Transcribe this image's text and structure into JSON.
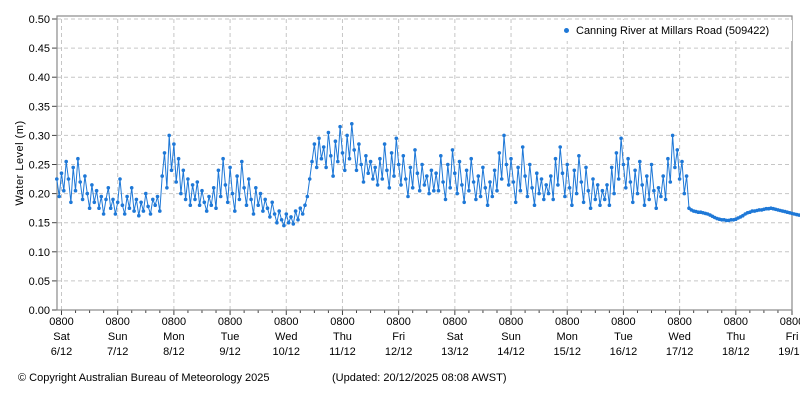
{
  "legend": {
    "label": "Canning River at Millars Road (509422)",
    "marker_color": "#1e78d7"
  },
  "footer": {
    "copyright": "© Copyright Australian Bureau of Meteorology 2025",
    "updated": "(Updated: 20/12/2025 08:08 AWST)"
  },
  "colors": {
    "series": "#1e78d7",
    "grid": "#c6c6c6",
    "frame": "#8a8a8a",
    "tick": "#444444",
    "text": "#000000"
  },
  "chart_data": {
    "type": "scatter",
    "title": "",
    "xlabel": "",
    "ylabel": "Water Level (m)",
    "ylim": [
      0.0,
      0.5
    ],
    "ytick_step": 0.05,
    "ytick_labels": [
      "0.00",
      "0.05",
      "0.10",
      "0.15",
      "0.20",
      "0.25",
      "0.30",
      "0.35",
      "0.40",
      "0.45",
      "0.50"
    ],
    "grid": "dashed",
    "legend_position": "top-right",
    "x_axis": {
      "tick_time_label": "0800",
      "minor_tick_hours": 6,
      "days": [
        {
          "dow": "Sat",
          "date": "6/12"
        },
        {
          "dow": "Sun",
          "date": "7/12"
        },
        {
          "dow": "Mon",
          "date": "8/12"
        },
        {
          "dow": "Tue",
          "date": "9/12"
        },
        {
          "dow": "Wed",
          "date": "10/12"
        },
        {
          "dow": "Thu",
          "date": "11/12"
        },
        {
          "dow": "Fri",
          "date": "12/12"
        },
        {
          "dow": "Sat",
          "date": "13/12"
        },
        {
          "dow": "Sun",
          "date": "14/12"
        },
        {
          "dow": "Mon",
          "date": "15/12"
        },
        {
          "dow": "Tue",
          "date": "16/12"
        },
        {
          "dow": "Wed",
          "date": "17/12"
        },
        {
          "dow": "Thu",
          "date": "18/12"
        },
        {
          "dow": "Fri",
          "date": "19/12"
        }
      ]
    },
    "series": [
      {
        "name": "Canning River at Millars Road (509422)",
        "color": "#1e78d7",
        "units": "m",
        "start": {
          "date": "6/12",
          "hour": 6
        },
        "end": {
          "date": "20/12",
          "hour": 8
        },
        "interval_hours": 1,
        "values": [
          0.225,
          0.195,
          0.235,
          0.205,
          0.255,
          0.225,
          0.185,
          0.245,
          0.205,
          0.26,
          0.22,
          0.19,
          0.23,
          0.2,
          0.175,
          0.215,
          0.185,
          0.205,
          0.175,
          0.195,
          0.165,
          0.19,
          0.21,
          0.175,
          0.19,
          0.165,
          0.185,
          0.225,
          0.18,
          0.165,
          0.195,
          0.175,
          0.21,
          0.17,
          0.19,
          0.162,
          0.185,
          0.17,
          0.2,
          0.178,
          0.165,
          0.19,
          0.18,
          0.195,
          0.17,
          0.23,
          0.27,
          0.21,
          0.3,
          0.24,
          0.285,
          0.22,
          0.26,
          0.2,
          0.24,
          0.19,
          0.225,
          0.18,
          0.215,
          0.19,
          0.22,
          0.18,
          0.205,
          0.185,
          0.17,
          0.195,
          0.18,
          0.21,
          0.175,
          0.24,
          0.195,
          0.26,
          0.215,
          0.185,
          0.245,
          0.2,
          0.17,
          0.23,
          0.19,
          0.255,
          0.21,
          0.18,
          0.225,
          0.19,
          0.165,
          0.21,
          0.18,
          0.2,
          0.17,
          0.19,
          0.175,
          0.16,
          0.185,
          0.165,
          0.15,
          0.17,
          0.155,
          0.145,
          0.165,
          0.15,
          0.16,
          0.148,
          0.17,
          0.155,
          0.175,
          0.165,
          0.18,
          0.195,
          0.225,
          0.255,
          0.285,
          0.245,
          0.295,
          0.26,
          0.28,
          0.245,
          0.305,
          0.265,
          0.23,
          0.29,
          0.255,
          0.315,
          0.27,
          0.24,
          0.3,
          0.26,
          0.32,
          0.275,
          0.24,
          0.285,
          0.25,
          0.22,
          0.265,
          0.235,
          0.255,
          0.225,
          0.245,
          0.215,
          0.26,
          0.225,
          0.285,
          0.24,
          0.21,
          0.27,
          0.23,
          0.295,
          0.25,
          0.215,
          0.265,
          0.225,
          0.195,
          0.245,
          0.21,
          0.275,
          0.235,
          0.205,
          0.25,
          0.215,
          0.23,
          0.2,
          0.24,
          0.205,
          0.235,
          0.205,
          0.265,
          0.22,
          0.19,
          0.25,
          0.21,
          0.275,
          0.235,
          0.2,
          0.255,
          0.215,
          0.185,
          0.24,
          0.205,
          0.26,
          0.22,
          0.19,
          0.23,
          0.195,
          0.245,
          0.21,
          0.18,
          0.22,
          0.195,
          0.24,
          0.205,
          0.27,
          0.225,
          0.3,
          0.25,
          0.215,
          0.26,
          0.22,
          0.185,
          0.245,
          0.205,
          0.28,
          0.23,
          0.195,
          0.25,
          0.21,
          0.18,
          0.235,
          0.2,
          0.225,
          0.19,
          0.215,
          0.2,
          0.23,
          0.19,
          0.26,
          0.215,
          0.28,
          0.235,
          0.195,
          0.25,
          0.21,
          0.18,
          0.24,
          0.2,
          0.265,
          0.22,
          0.185,
          0.245,
          0.205,
          0.175,
          0.225,
          0.19,
          0.215,
          0.18,
          0.205,
          0.19,
          0.215,
          0.18,
          0.245,
          0.2,
          0.27,
          0.225,
          0.295,
          0.25,
          0.21,
          0.26,
          0.22,
          0.185,
          0.24,
          0.2,
          0.255,
          0.215,
          0.18,
          0.23,
          0.19,
          0.25,
          0.205,
          0.175,
          0.21,
          0.195,
          0.23,
          0.19,
          0.26,
          0.22,
          0.3,
          0.245,
          0.275,
          0.225,
          0.255,
          0.2,
          0.23,
          0.175,
          0.172,
          0.17,
          0.169,
          0.168,
          0.168,
          0.167,
          0.166,
          0.165,
          0.163,
          0.161,
          0.159,
          0.157,
          0.156,
          0.155,
          0.155,
          0.154,
          0.154,
          0.155,
          0.155,
          0.156,
          0.158,
          0.16,
          0.162,
          0.165,
          0.167,
          0.168,
          0.17,
          0.17,
          0.171,
          0.172,
          0.172,
          0.173,
          0.174,
          0.174,
          0.175,
          0.174,
          0.173,
          0.172,
          0.171,
          0.17,
          0.169,
          0.168,
          0.167,
          0.166,
          0.165,
          0.164,
          0.163,
          0.162,
          0.161,
          0.161,
          0.16,
          0.16,
          0.159,
          0.159,
          0.158,
          0.158,
          0.157,
          0.157,
          0.157,
          0.156,
          0.156,
          0.155,
          0.155,
          0.155,
          0.154,
          0.154,
          0.154,
          0.153
        ]
      }
    ]
  }
}
